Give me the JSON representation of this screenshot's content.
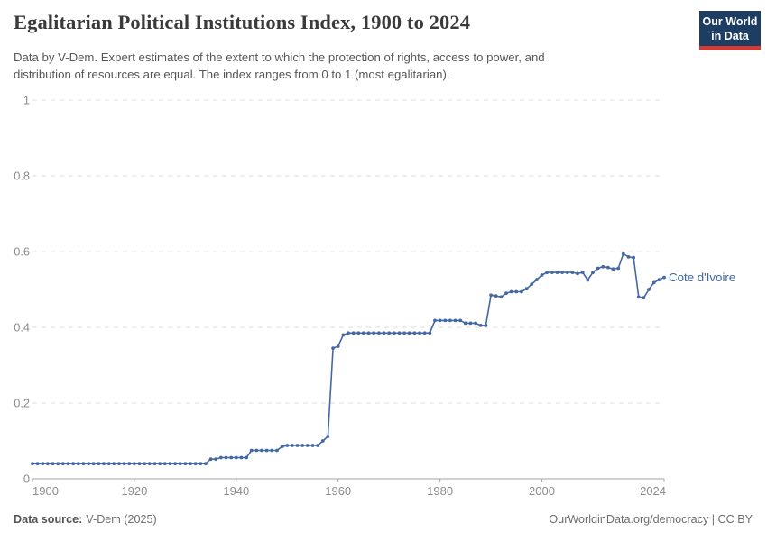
{
  "header": {
    "title": "Egalitarian Political Institutions Index, 1900 to 2024",
    "subtitle_lines": [
      "Data by V-Dem. Expert estimates of the extent to which the protection of rights, access to power, and",
      "distribution of resources are equal. The index ranges from 0 to 1 (most egalitarian)."
    ],
    "logo": {
      "line1": "Our World",
      "line2": "in Data"
    }
  },
  "chart_data": {
    "type": "line",
    "title": "Egalitarian Political Institutions Index, 1900 to 2024",
    "xlabel": "",
    "ylabel": "",
    "x_range": [
      1900,
      2024
    ],
    "ylim": [
      0,
      1
    ],
    "x_ticks": [
      1900,
      1920,
      1940,
      1960,
      1980,
      2000,
      2024
    ],
    "y_ticks": [
      0,
      0.2,
      0.4,
      0.6,
      0.8,
      1
    ],
    "y_tick_labels": [
      "0",
      "0.2",
      "0.4",
      "0.6",
      "0.8",
      "1"
    ],
    "grid": "horizontal-dashed",
    "legend_position": "end-of-line-label",
    "series": [
      {
        "name": "Cote d'Ivoire",
        "x_start_year": 1900,
        "x_step": 1,
        "values": [
          0.04,
          0.04,
          0.04,
          0.04,
          0.04,
          0.04,
          0.04,
          0.04,
          0.04,
          0.04,
          0.04,
          0.04,
          0.04,
          0.04,
          0.04,
          0.04,
          0.04,
          0.04,
          0.04,
          0.04,
          0.04,
          0.04,
          0.04,
          0.04,
          0.04,
          0.04,
          0.04,
          0.04,
          0.04,
          0.04,
          0.04,
          0.04,
          0.04,
          0.04,
          0.04,
          0.052,
          0.052,
          0.056,
          0.056,
          0.056,
          0.056,
          0.056,
          0.056,
          0.075,
          0.075,
          0.075,
          0.075,
          0.075,
          0.075,
          0.085,
          0.088,
          0.088,
          0.088,
          0.088,
          0.088,
          0.088,
          0.088,
          0.1,
          0.112,
          0.345,
          0.35,
          0.38,
          0.385,
          0.385,
          0.385,
          0.385,
          0.385,
          0.385,
          0.385,
          0.385,
          0.385,
          0.385,
          0.385,
          0.385,
          0.385,
          0.385,
          0.385,
          0.385,
          0.385,
          0.418,
          0.418,
          0.418,
          0.418,
          0.418,
          0.418,
          0.411,
          0.411,
          0.411,
          0.405,
          0.405,
          0.485,
          0.483,
          0.48,
          0.49,
          0.494,
          0.494,
          0.494,
          0.502,
          0.514,
          0.526,
          0.538,
          0.545,
          0.545,
          0.545,
          0.545,
          0.545,
          0.545,
          0.542,
          0.545,
          0.525,
          0.545,
          0.556,
          0.56,
          0.558,
          0.554,
          0.556,
          0.594,
          0.586,
          0.584,
          0.48,
          0.478,
          0.5,
          0.518,
          0.526,
          0.532
        ]
      }
    ]
  },
  "colors": {
    "line": "#4468a4",
    "series_label": "#3d66a6",
    "grid": "#dcdcdc",
    "axis": "#a3a3a3",
    "tick_text": "#8c8c8c",
    "logo_bg": "#1d3d63",
    "logo_accent": "#d13b33"
  },
  "footer": {
    "source_label": "Data source:",
    "source_value": "V-Dem (2025)",
    "right_text": "OurWorldinData.org/democracy | CC BY"
  }
}
